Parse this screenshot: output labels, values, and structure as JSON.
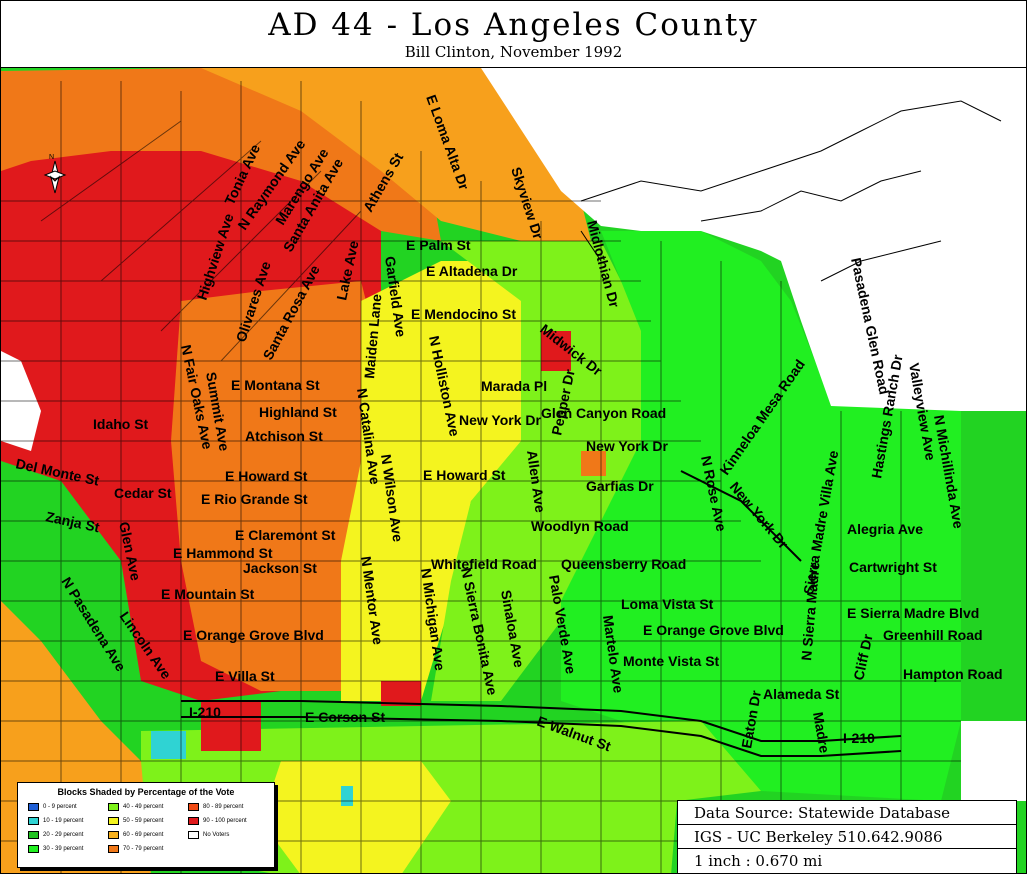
{
  "title": "AD 44 - Los Angeles County",
  "subtitle": "Bill Clinton, November 1992",
  "colors": {
    "p0_9": "#1f5fd6",
    "p10_19": "#2fd3d3",
    "p20_29": "#22c322",
    "p30_39": "#21ef21",
    "p40_49": "#7ef21a",
    "p50_59": "#f4f41f",
    "p60_69": "#f7b01c",
    "p70_79": "#f07818",
    "p80_89": "#f04a14",
    "p90_100": "#e0191c",
    "no_voters": "#ffffff",
    "background_lines": "#000000"
  },
  "legend": {
    "title": "Blocks Shaded by Percentage of the Vote",
    "items": [
      {
        "label": "0 - 9 percent",
        "color": "#1f5fd6"
      },
      {
        "label": "10 - 19 percent",
        "color": "#2fd3d3"
      },
      {
        "label": "20 - 29 percent",
        "color": "#22c322"
      },
      {
        "label": "30 - 39 percent",
        "color": "#21ef21"
      },
      {
        "label": "40 - 49 percent",
        "color": "#7ef21a"
      },
      {
        "label": "50 - 59 percent",
        "color": "#f4f41f"
      },
      {
        "label": "60 - 69 percent",
        "color": "#f7b01c"
      },
      {
        "label": "70 - 79 percent",
        "color": "#f07818"
      },
      {
        "label": "80 - 89 percent",
        "color": "#f04a14"
      },
      {
        "label": "90 - 100 percent",
        "color": "#e0191c"
      },
      {
        "label": "No Voters",
        "color": "#ffffff"
      }
    ]
  },
  "source": {
    "line1": "Data Source: Statewide Database",
    "line2": "IGS - UC Berkeley 510.642.9086",
    "line3": "1 inch : 0.670 mi"
  },
  "streets": {
    "tonia": "Tonia Ave",
    "raymond": "N Raymond Ave",
    "marengo": "Marengo Ave",
    "santa_anita": "Santa Anita Ave",
    "athens": "Athens St",
    "loma_alta": "E Loma Alta Dr",
    "skyview": "Skyview Dr",
    "midwithian": "Midlothian Dr",
    "highview": "Highview Ave",
    "olivares": "Olivares Ave",
    "santa_rosa": "Santa Rosa Ave",
    "lake": "Lake Ave",
    "maiden": "Maiden Lane",
    "garfield": "Garfield Ave",
    "palm": "E Palm St",
    "altadena": "E Altadena Dr",
    "mendocino": "E Mendocino St",
    "midwick": "Midwick Dr",
    "pasadena_glen": "Pasadena Glen Road",
    "kinneloa": "Kinneloa Mesa Road",
    "hastings": "Hastings Ranch Dr",
    "valleyview": "Valleyview Ave",
    "michillinda": "N Michillinda Ave",
    "fair_oaks": "N Fair Oaks Ave",
    "summit": "Summit Ave",
    "montana": "E Montana St",
    "highland": "Highland St",
    "atchison": "Atchison St",
    "idaho": "Idaho St",
    "del_monte": "Del Monte St",
    "cedar": "Cedar St",
    "howard_w": "E Howard St",
    "rio_grande": "E Rio Grande St",
    "zanja": "Zanja St",
    "claremont": "E Claremont St",
    "hammond": "E Hammond St",
    "jackson": "Jackson St",
    "mountain": "E Mountain St",
    "orange_grove_w": "E Orange Grove Blvd",
    "villa": "E Villa St",
    "glen": "Glen Ave",
    "n_pasadena": "N Pasadena Ave",
    "lincoln": "Lincoln Ave",
    "i210_w": "I-210",
    "i210_e": "I-210",
    "corson": "E Corson St",
    "walnut": "E Walnut St",
    "catalina": "N Catalina Ave",
    "wilson": "N Wilson Ave",
    "holliston": "N Holliston Ave",
    "mentor": "N Mentor Ave",
    "michigan": "N Michigan Ave",
    "sierra_bonita": "N Sierra Bonita Ave",
    "sinaloa": "Sinaloa Ave",
    "palo_verde": "Palo Verde Ave",
    "martelo": "Martelo Ave",
    "allen": "Allen Ave",
    "pepper": "Pepper Dr",
    "marada": "Marada Pl",
    "glen_canyon": "Glen Canyon Road",
    "new_york_w": "New York Dr",
    "new_york_e": "New York Dr",
    "new_york_diag": "New York Dr",
    "howard_e": "E Howard St",
    "garfias": "Garfias Dr",
    "woodlyn": "Woodlyn Road",
    "whitefield": "Whitefield Road",
    "queensberry": "Queensberry Road",
    "rose": "N Rose Ave",
    "loma_vista": "Loma Vista St",
    "orange_grove_e": "E Orange Grove Blvd",
    "monte_vista": "Monte Vista St",
    "sierra_madre_villa": "Sierra Madre Villa Ave",
    "n_sierra_madre": "N Sierra Madre",
    "madre": "Madre",
    "alegria": "Alegria Ave",
    "cartwright": "Cartwright St",
    "sierra_madre_blvd": "E Sierra Madre Blvd",
    "greenhill": "Greenhill Road",
    "hampton": "Hampton Road",
    "cliff": "Cliff Dr",
    "alameda": "Alameda St",
    "eaton": "Eaton Dr"
  },
  "north_label": "N"
}
